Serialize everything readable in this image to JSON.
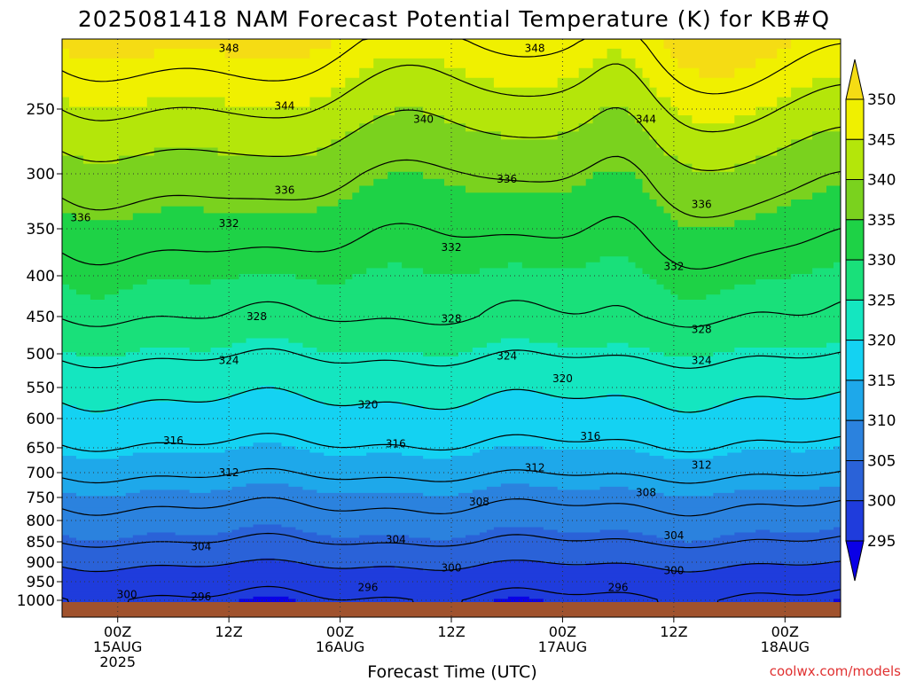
{
  "chart_data": {
    "type": "heatmap",
    "title": "2025081418 NAM Forecast Potential Temperature (K) for KB#Q",
    "xlabel": "Forecast Time (UTC)",
    "ylabel": "",
    "credit": "coolwx.com/models",
    "y_axis": {
      "scale": "pressure (log-like)",
      "ylim": [
        1000,
        205
      ],
      "ticks": [
        250,
        300,
        350,
        400,
        450,
        500,
        550,
        600,
        650,
        700,
        750,
        800,
        850,
        900,
        950,
        1000
      ]
    },
    "x_axis": {
      "xlim": [
        "2025-08-14 18Z",
        "2025-08-18 06Z"
      ],
      "ticks": [
        {
          "line1": "00Z",
          "line2": "15AUG",
          "line3": "2025",
          "t": "2025-08-15 00Z"
        },
        {
          "line1": "12Z",
          "line2": "",
          "line3": "",
          "t": "2025-08-15 12Z"
        },
        {
          "line1": "00Z",
          "line2": "16AUG",
          "line3": "",
          "t": "2025-08-16 00Z"
        },
        {
          "line1": "12Z",
          "line2": "",
          "line3": "",
          "t": "2025-08-16 12Z"
        },
        {
          "line1": "00Z",
          "line2": "17AUG",
          "line3": "",
          "t": "2025-08-17 00Z"
        },
        {
          "line1": "12Z",
          "line2": "",
          "line3": "",
          "t": "2025-08-17 12Z"
        },
        {
          "line1": "00Z",
          "line2": "18AUG",
          "line3": "",
          "t": "2025-08-18 00Z"
        }
      ]
    },
    "grid": true,
    "colorbar": {
      "levels": [
        295,
        300,
        305,
        310,
        315,
        320,
        325,
        330,
        335,
        340,
        345,
        350
      ],
      "colors": [
        "#0a00e6",
        "#1f3cdc",
        "#2a62d8",
        "#2b82de",
        "#1ea8ea",
        "#14d2f2",
        "#14e6c0",
        "#19e07a",
        "#1ed246",
        "#7ad21e",
        "#b4e60a",
        "#f0f000",
        "#f5dc14"
      ],
      "placement": "right"
    },
    "ground_color": "#a0522d",
    "contour_lines": [
      {
        "theta": 296,
        "labels": [
          {
            "text": "296",
            "t": "2025-08-15 09Z",
            "p": 990
          },
          {
            "text": "296",
            "t": "2025-08-16 03Z",
            "p": 965
          },
          {
            "text": "296",
            "t": "2025-08-17 06Z",
            "p": 965
          }
        ]
      },
      {
        "theta": 300,
        "labels": [
          {
            "text": "300",
            "t": "2025-08-15 01Z",
            "p": 985
          },
          {
            "text": "300",
            "t": "2025-08-16 12Z",
            "p": 915
          },
          {
            "text": "300",
            "t": "2025-08-17 12Z",
            "p": 922
          }
        ]
      },
      {
        "theta": 304,
        "labels": [
          {
            "text": "304",
            "t": "2025-08-15 09Z",
            "p": 862
          },
          {
            "text": "304",
            "t": "2025-08-16 06Z",
            "p": 845
          },
          {
            "text": "304",
            "t": "2025-08-17 12Z",
            "p": 835
          }
        ]
      },
      {
        "theta": 308,
        "labels": [
          {
            "text": "308",
            "t": "2025-08-16 15Z",
            "p": 760
          },
          {
            "text": "308",
            "t": "2025-08-17 09Z",
            "p": 740
          }
        ]
      },
      {
        "theta": 312,
        "labels": [
          {
            "text": "312",
            "t": "2025-08-15 12Z",
            "p": 700
          },
          {
            "text": "312",
            "t": "2025-08-16 21Z",
            "p": 690
          },
          {
            "text": "312",
            "t": "2025-08-17 15Z",
            "p": 685
          }
        ]
      },
      {
        "theta": 316,
        "labels": [
          {
            "text": "316",
            "t": "2025-08-15 06Z",
            "p": 638
          },
          {
            "text": "316",
            "t": "2025-08-16 06Z",
            "p": 643
          },
          {
            "text": "316",
            "t": "2025-08-17 03Z",
            "p": 630
          }
        ]
      },
      {
        "theta": 320,
        "labels": [
          {
            "text": "320",
            "t": "2025-08-16 03Z",
            "p": 578
          },
          {
            "text": "320",
            "t": "2025-08-17 00Z",
            "p": 537
          }
        ]
      },
      {
        "theta": 324,
        "labels": [
          {
            "text": "324",
            "t": "2025-08-15 12Z",
            "p": 510
          },
          {
            "text": "324",
            "t": "2025-08-16 18Z",
            "p": 503
          },
          {
            "text": "324",
            "t": "2025-08-17 15Z",
            "p": 510
          }
        ]
      },
      {
        "theta": 328,
        "labels": [
          {
            "text": "328",
            "t": "2025-08-15 15Z",
            "p": 450
          },
          {
            "text": "328",
            "t": "2025-08-16 12Z",
            "p": 453
          },
          {
            "text": "328",
            "t": "2025-08-17 15Z",
            "p": 467
          }
        ]
      },
      {
        "theta": 332,
        "labels": [
          {
            "text": "332",
            "t": "2025-08-15 12Z",
            "p": 345
          },
          {
            "text": "332",
            "t": "2025-08-16 12Z",
            "p": 370
          },
          {
            "text": "332",
            "t": "2025-08-17 12Z",
            "p": 390
          }
        ]
      },
      {
        "theta": 336,
        "labels": [
          {
            "text": "336",
            "t": "2025-08-14 20Z",
            "p": 340
          },
          {
            "text": "336",
            "t": "2025-08-15 18Z",
            "p": 315
          },
          {
            "text": "336",
            "t": "2025-08-16 18Z",
            "p": 305
          },
          {
            "text": "336",
            "t": "2025-08-17 15Z",
            "p": 328
          }
        ]
      },
      {
        "theta": 340,
        "labels": [
          {
            "text": "340",
            "t": "2025-08-16 09Z",
            "p": 258
          }
        ]
      },
      {
        "theta": 344,
        "labels": [
          {
            "text": "344",
            "t": "2025-08-15 18Z",
            "p": 248
          },
          {
            "text": "344",
            "t": "2025-08-17 09Z",
            "p": 258
          }
        ]
      },
      {
        "theta": 348,
        "labels": [
          {
            "text": "348",
            "t": "2025-08-15 12Z",
            "p": 211
          },
          {
            "text": "348",
            "t": "2025-08-16 21Z",
            "p": 211
          }
        ]
      }
    ]
  }
}
